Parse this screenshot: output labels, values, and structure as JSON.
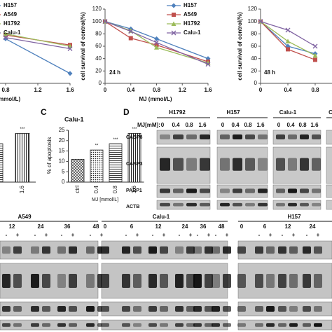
{
  "chart_data": [
    {
      "type": "line",
      "xlabel": "mmol/L)",
      "x": [
        0.8,
        1.6
      ],
      "xlim": [
        0,
        1.6
      ],
      "xticks": [
        0.8,
        1.2,
        1.6
      ],
      "ylim": [
        0,
        120
      ],
      "legend": "upper left",
      "series": [
        {
          "name": "H157",
          "color": "#4f81bd",
          "marker": "diamond",
          "values": [
            72,
            16
          ]
        },
        {
          "name": "A549",
          "color": "#c0504d",
          "marker": "square",
          "values": [
            78,
            62
          ]
        },
        {
          "name": "H1792",
          "color": "#9bbb59",
          "marker": "triangle",
          "values": [
            80,
            60
          ]
        },
        {
          "name": "Calu-1",
          "color": "#8064a2",
          "marker": "x",
          "values": [
            74,
            56
          ]
        }
      ]
    },
    {
      "type": "line",
      "xlabel": "MJ (mmol/L)",
      "ylabel": "cell survival of control(%)",
      "annotation": "24 h",
      "x": [
        0,
        0.4,
        0.8,
        1.6
      ],
      "xlim": [
        0,
        1.6
      ],
      "xticks": [
        0,
        0.4,
        0.8,
        1.2,
        1.6
      ],
      "ylim": [
        0,
        120
      ],
      "yticks": [
        0,
        20,
        40,
        60,
        80,
        100,
        120
      ],
      "legend": "upper right",
      "series": [
        {
          "name": "H157",
          "color": "#4f81bd",
          "marker": "diamond",
          "values": [
            100,
            88,
            72,
            40
          ]
        },
        {
          "name": "A549",
          "color": "#c0504d",
          "marker": "square",
          "values": [
            100,
            73,
            62,
            35
          ]
        },
        {
          "name": "H1792",
          "color": "#9bbb59",
          "marker": "triangle",
          "values": [
            100,
            85,
            58,
            33
          ]
        },
        {
          "name": "Calu-1",
          "color": "#8064a2",
          "marker": "x",
          "values": [
            100,
            84,
            66,
            31
          ]
        }
      ]
    },
    {
      "type": "line",
      "ylabel": "cell survival of control(%)",
      "annotation": "48 h",
      "x": [
        0,
        0.4,
        0.8
      ],
      "xlim": [
        0,
        1.6
      ],
      "xticks": [
        0,
        0.4,
        0.8
      ],
      "ylim": [
        0,
        120
      ],
      "yticks": [
        0,
        20,
        40,
        60,
        80,
        100,
        120
      ],
      "series": [
        {
          "name": "H157",
          "color": "#4f81bd",
          "marker": "diamond",
          "values": [
            100,
            60,
            48
          ]
        },
        {
          "name": "A549",
          "color": "#c0504d",
          "marker": "square",
          "values": [
            100,
            55,
            38
          ]
        },
        {
          "name": "H1792",
          "color": "#9bbb59",
          "marker": "triangle",
          "values": [
            100,
            68,
            45
          ]
        },
        {
          "name": "Calu-1",
          "color": "#8064a2",
          "marker": "x",
          "values": [
            100,
            86,
            60
          ]
        }
      ]
    },
    {
      "type": "bar",
      "categories": [
        null,
        "1.6"
      ],
      "values": [
        18.5,
        23.5
      ],
      "ylim": [
        0,
        25
      ],
      "annotations": [
        null,
        "***"
      ]
    },
    {
      "type": "bar",
      "title": "Calu-1",
      "xlabel": "MJ [mmol/L]",
      "ylabel": "% of apoptosis",
      "categories": [
        "ctrl",
        "0.4",
        "0.8",
        "1.6"
      ],
      "values": [
        11,
        15.5,
        18.5,
        23.5
      ],
      "ylim": [
        0,
        25
      ],
      "yticks": [
        0,
        5,
        10,
        15,
        20,
        25
      ],
      "annotations": [
        null,
        "**",
        "***",
        "***"
      ]
    }
  ],
  "panel_labels": [
    "C",
    "D"
  ],
  "blot_dose": {
    "label": "MJ[mM]:",
    "lanes": [
      "0",
      "0.4",
      "0.8",
      "1.6"
    ],
    "cell_lines": [
      "H1792",
      "H157",
      "Calu-1",
      "C"
    ],
    "proteins": [
      "CASP8",
      "CASP3",
      "PARP1",
      "ACTB"
    ]
  },
  "blot_time": {
    "cell_lines": [
      "A549",
      "Calu-1",
      "H157"
    ],
    "times": [
      [
        "12",
        "24",
        "36",
        "48"
      ],
      [
        "0",
        "6",
        "12",
        "24",
        "36",
        "48"
      ],
      [
        "0",
        "6",
        "12",
        "24"
      ]
    ],
    "treatments": [
      "-",
      "+"
    ]
  }
}
